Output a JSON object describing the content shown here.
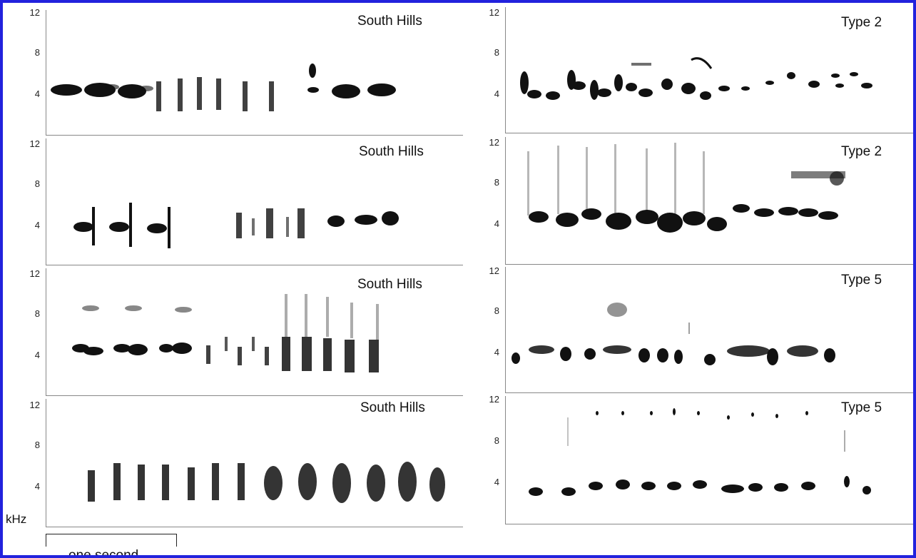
{
  "y_axis_unit": "kHz",
  "scale_bar_label": "one second",
  "panels": [
    {
      "title": "South Hills",
      "ticks": [
        "12",
        "8",
        "4"
      ]
    },
    {
      "title": "South Hills",
      "ticks": [
        "12",
        "8",
        "4"
      ]
    },
    {
      "title": "South Hills",
      "ticks": [
        "12",
        "8",
        "4"
      ]
    },
    {
      "title": "South Hills",
      "ticks": [
        "12",
        "8",
        "4"
      ]
    },
    {
      "title": "Type 2",
      "ticks": [
        "12",
        "8",
        "4"
      ]
    },
    {
      "title": "Type 2",
      "ticks": [
        "12",
        "8",
        "4"
      ]
    },
    {
      "title": "Type 5",
      "ticks": [
        "12",
        "8",
        "4"
      ]
    },
    {
      "title": "Type 5",
      "ticks": [
        "12",
        "8",
        "4"
      ]
    }
  ],
  "colors": {
    "frame": "#2222dd",
    "ink": "#111111"
  }
}
